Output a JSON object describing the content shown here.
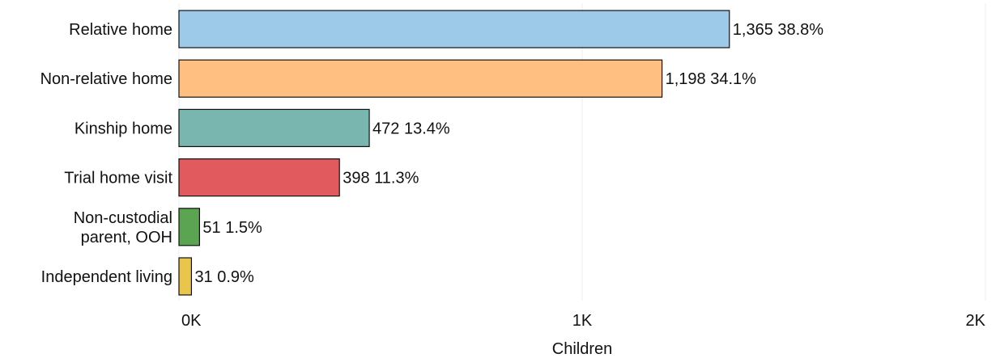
{
  "chart_data": {
    "type": "bar",
    "orientation": "horizontal",
    "categories": [
      [
        "Relative home"
      ],
      [
        "Non-relative home"
      ],
      [
        "Kinship home"
      ],
      [
        "Trial home visit"
      ],
      [
        "Non-custodial",
        "parent, OOH"
      ],
      [
        "Independent living"
      ]
    ],
    "values": [
      1365,
      1198,
      472,
      398,
      51,
      31
    ],
    "percents": [
      "38.8%",
      "34.1%",
      "13.4%",
      "11.3%",
      "1.5%",
      "0.9%"
    ],
    "value_labels": [
      "1,365",
      "1,198",
      "472",
      "398",
      "51",
      "31"
    ],
    "colors": [
      "#9ecae9",
      "#ffbf80",
      "#79b6b0",
      "#e05a5e",
      "#5aa452",
      "#e9c54b"
    ],
    "xlim": [
      0,
      2000
    ],
    "xticks": [
      0,
      1000,
      2000
    ],
    "xtick_labels": [
      "0K",
      "1K",
      "2K"
    ],
    "xlabel": "Children",
    "grid": "vertical"
  }
}
